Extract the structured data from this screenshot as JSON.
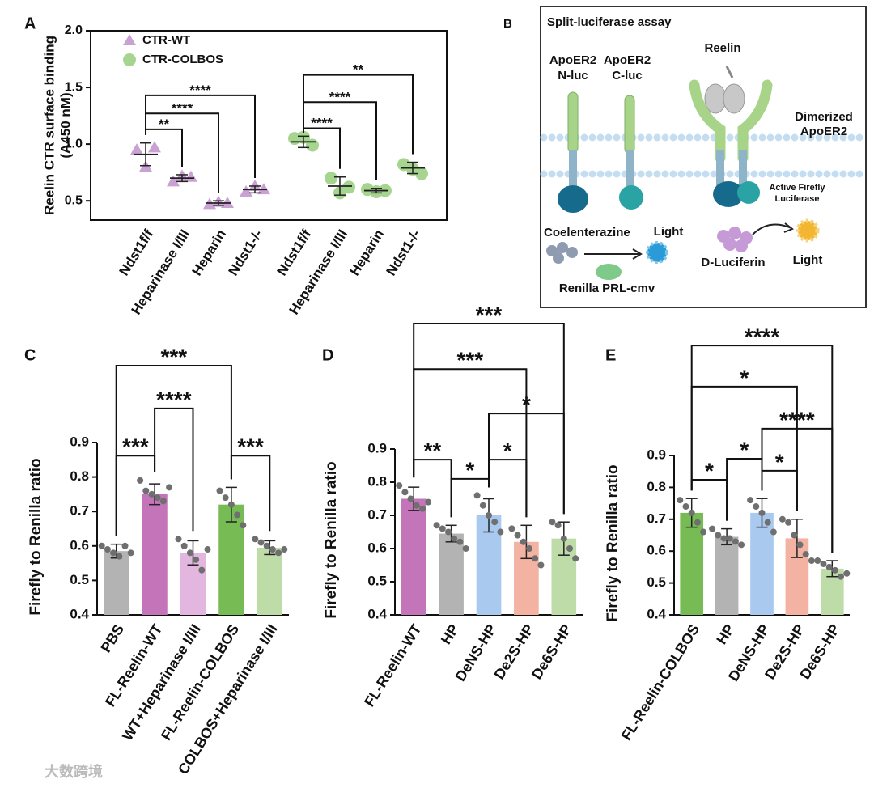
{
  "chart_data": [
    {
      "panel": "A",
      "type": "dot",
      "ylabel": [
        "Reelin CTR surface binding",
        "(A450 nM)"
      ],
      "categories": [
        "Ndst1f/f",
        "Heparinase I/III",
        "Heparin",
        "Ndst1-/-",
        "Ndst1f/f",
        "Heparinase I/III",
        "Heparin",
        "Ndst1-/-"
      ],
      "ylim": [
        0.33,
        2.0
      ],
      "yticks": [
        0.5,
        {
          "value": 1.0,
          "label": "1.0"
        },
        1.5,
        {
          "value": 2.0,
          "label": "2.0"
        }
      ],
      "legend": "upper left",
      "series": [
        {
          "name": "CTR-WT",
          "color": "#c9a2d3",
          "marker": "triangle",
          "values": [
            0.91,
            0.7,
            0.48,
            0.6,
            null,
            null,
            null,
            null
          ],
          "errors": [
            0.1,
            0.03,
            0.02,
            0.03,
            null,
            null,
            null,
            null
          ],
          "points": [
            [
              0.95,
              0.8,
              0.97
            ],
            [
              0.67,
              0.72,
              0.71
            ],
            [
              0.47,
              0.49,
              0.48
            ],
            [
              0.58,
              0.63,
              0.6
            ],
            null,
            null,
            null,
            null
          ]
        },
        {
          "name": "CTR-COLBOS",
          "color": "#a6d590",
          "marker": "circle",
          "values": [
            null,
            null,
            null,
            null,
            1.02,
            0.63,
            0.59,
            0.79
          ],
          "errors": [
            null,
            null,
            null,
            null,
            0.05,
            0.08,
            0.02,
            0.05
          ],
          "points": [
            null,
            null,
            null,
            null,
            [
              1.05,
              1.06,
              0.99
            ],
            [
              0.7,
              0.57,
              0.62
            ],
            [
              0.6,
              0.58,
              0.59
            ],
            [
              0.82,
              0.78,
              0.74
            ]
          ]
        }
      ],
      "brackets": [
        {
          "from": 0,
          "to": 1,
          "y": 1.13,
          "label": "**"
        },
        {
          "from": 0,
          "to": 2,
          "y": 1.27,
          "label": "****"
        },
        {
          "from": 0,
          "to": 3,
          "y": 1.43,
          "label": "****"
        },
        {
          "from": 4,
          "to": 5,
          "y": 1.14,
          "label": "****"
        },
        {
          "from": 4,
          "to": 6,
          "y": 1.37,
          "label": "****"
        },
        {
          "from": 4,
          "to": 7,
          "y": 1.61,
          "label": "**"
        }
      ]
    },
    {
      "panel": "C",
      "type": "bar",
      "ylabel": "Firefly to Renilla ratio",
      "categories": [
        "PBS",
        "FL-Reelin-WT",
        "WT+Heparinase I/III",
        "FL-Reelin-COLBOS",
        "COLBOS+Heparinase I/III"
      ],
      "colors": [
        "#b3b3b3",
        "#c474b8",
        "#e2b6de",
        "#77bb55",
        "#bddca8"
      ],
      "values": [
        0.585,
        0.75,
        0.58,
        0.72,
        0.595
      ],
      "errors": [
        0.02,
        0.03,
        0.035,
        0.05,
        0.02
      ],
      "points": [
        [
          0.6,
          0.59,
          0.58,
          0.57,
          0.6,
          0.58
        ],
        [
          0.79,
          0.76,
          0.75,
          0.74,
          0.73,
          0.77
        ],
        [
          0.62,
          0.6,
          0.58,
          0.56,
          0.53,
          0.59
        ],
        [
          0.76,
          0.74,
          0.72,
          0.69,
          0.66
        ],
        [
          0.62,
          0.61,
          0.6,
          0.59,
          0.58,
          0.59
        ]
      ],
      "ylim": [
        0.4,
        0.9
      ],
      "yticks": [
        0.4,
        0.5,
        0.6,
        0.7,
        0.8,
        0.9
      ],
      "brackets": [
        {
          "from": 0,
          "to": 1,
          "y": 0.862,
          "label": "***"
        },
        {
          "from": 1,
          "to": 2,
          "y": 0.999,
          "label": "****"
        },
        {
          "from": 0,
          "to": 3,
          "y": 1.123,
          "label": "***"
        },
        {
          "from": 3,
          "to": 4,
          "y": 0.862,
          "label": "***"
        }
      ]
    },
    {
      "panel": "D",
      "type": "bar",
      "ylabel": "Firefly to Renilla ratio",
      "categories": [
        "FL-Reelin-WT",
        "HP",
        "DeNS-HP",
        "De2S-HP",
        "De6S-HP"
      ],
      "colors": [
        "#c474b8",
        "#b3b3b3",
        "#a9c9ef",
        "#f3b2a2",
        "#bddca8"
      ],
      "values": [
        0.75,
        0.645,
        0.7,
        0.62,
        0.63
      ],
      "errors": [
        0.035,
        0.025,
        0.05,
        0.05,
        0.05
      ],
      "points": [
        [
          0.79,
          0.77,
          0.75,
          0.73,
          0.72,
          0.74
        ],
        [
          0.67,
          0.66,
          0.65,
          0.63,
          0.62,
          0.6
        ],
        [
          0.76,
          0.73,
          0.7,
          0.68,
          0.65
        ],
        [
          0.66,
          0.64,
          0.62,
          0.6,
          0.57,
          0.55
        ],
        [
          0.68,
          0.67,
          0.63,
          0.6,
          0.57
        ]
      ],
      "ylim": [
        0.4,
        0.9
      ],
      "yticks": [
        0.4,
        0.5,
        0.6,
        0.7,
        0.8,
        0.9
      ],
      "brackets": [
        {
          "from": 0,
          "to": 1,
          "y": 0.868,
          "label": "**"
        },
        {
          "from": 1,
          "to": 2,
          "y": 0.81,
          "label": "*"
        },
        {
          "from": 2,
          "to": 3,
          "y": 0.868,
          "label": "*"
        },
        {
          "from": 2,
          "to": 4,
          "y": 1.007,
          "label": "*"
        },
        {
          "from": 0,
          "to": 3,
          "y": 1.141,
          "label": "***"
        },
        {
          "from": 0,
          "to": 4,
          "y": 1.278,
          "label": "***"
        }
      ]
    },
    {
      "panel": "E",
      "type": "bar",
      "ylabel": "Firefly to Renilla ratio",
      "categories": [
        "FL-Reelin-COLBOS",
        "HP",
        "DeNS-HP",
        "De2S-HP",
        "De6S-HP"
      ],
      "colors": [
        "#77bb55",
        "#b3b3b3",
        "#a9c9ef",
        "#f3b2a2",
        "#bddca8"
      ],
      "values": [
        0.72,
        0.645,
        0.72,
        0.64,
        0.545
      ],
      "errors": [
        0.045,
        0.025,
        0.045,
        0.06,
        0.025
      ],
      "points": [
        [
          0.76,
          0.74,
          0.72,
          0.69,
          0.66
        ],
        [
          0.67,
          0.65,
          0.64,
          0.64,
          0.63,
          0.62
        ],
        [
          0.76,
          0.74,
          0.72,
          0.69,
          0.66
        ],
        [
          0.7,
          0.69,
          0.65,
          0.62,
          0.59,
          0.57
        ],
        [
          0.57,
          0.56,
          0.55,
          0.54,
          0.52,
          0.53
        ]
      ],
      "ylim": [
        0.4,
        0.9
      ],
      "yticks": [
        0.4,
        0.5,
        0.6,
        0.7,
        0.8,
        0.9
      ],
      "brackets": [
        {
          "from": 0,
          "to": 1,
          "y": 0.824,
          "label": "*"
        },
        {
          "from": 1,
          "to": 2,
          "y": 0.89,
          "label": "*"
        },
        {
          "from": 2,
          "to": 3,
          "y": 0.852,
          "label": "*"
        },
        {
          "from": 2,
          "to": 4,
          "y": 0.984,
          "label": "****"
        },
        {
          "from": 0,
          "to": 3,
          "y": 1.116,
          "label": "*"
        },
        {
          "from": 0,
          "to": 4,
          "y": 1.245,
          "label": "****"
        }
      ]
    }
  ],
  "diagram": {
    "panel": "B",
    "title": "Split-luciferase assay",
    "nluc": [
      "ApoER2",
      "N-luc"
    ],
    "cluc": [
      "ApoER2",
      "C-luc"
    ],
    "reelin": "Reelin",
    "dimer": [
      "Dimerized",
      "ApoER2"
    ],
    "firefly": [
      "Active Firefly",
      "Luciferase"
    ],
    "substrate": "Coelenterazine",
    "light1": "Light",
    "renilla": "Renilla PRL-cmv",
    "luciferin": "D-Luciferin",
    "light2": "Light"
  },
  "watermark": "大数跨境"
}
